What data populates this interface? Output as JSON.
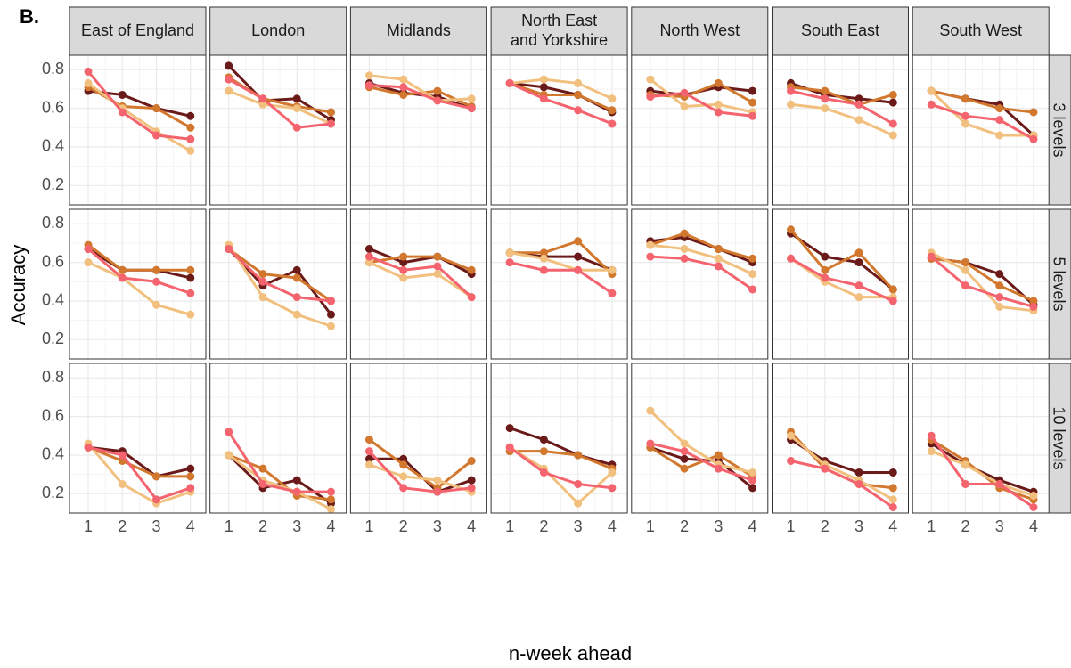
{
  "chart_data": {
    "type": "line",
    "tag": "B.",
    "xlabel": "n-week ahead",
    "ylabel": "Accuracy",
    "columns": [
      "East of England",
      "London",
      "Midlands",
      "North East and Yorkshire",
      "North West",
      "South East",
      "South West"
    ],
    "rows": [
      "3 levels",
      "5 levels",
      "10 levels"
    ],
    "x": [
      1,
      2,
      3,
      4
    ],
    "xlim": [
      0.45,
      4.45
    ],
    "ylim": [
      0.1,
      0.875
    ],
    "yticks": [
      0.2,
      0.4,
      0.6,
      0.8
    ],
    "grid": true,
    "colors": [
      "#6b1a1a",
      "#d2782e",
      "#f2c07e",
      "#f4646e"
    ],
    "panels": [
      [
        [
          [
            0.69,
            0.67,
            0.6,
            0.56
          ],
          [
            0.71,
            0.61,
            0.6,
            0.5
          ],
          [
            0.73,
            0.6,
            0.48,
            0.38
          ],
          [
            0.79,
            0.58,
            0.46,
            0.44
          ]
        ],
        [
          [
            0.82,
            0.64,
            0.65,
            0.54
          ],
          [
            0.76,
            0.65,
            0.61,
            0.58
          ],
          [
            0.69,
            0.62,
            0.6,
            0.52
          ],
          [
            0.75,
            0.65,
            0.5,
            0.52
          ]
        ],
        [
          [
            0.73,
            0.68,
            0.66,
            0.6
          ],
          [
            0.71,
            0.67,
            0.69,
            0.61
          ],
          [
            0.77,
            0.75,
            0.64,
            0.65
          ],
          [
            0.72,
            0.71,
            0.64,
            0.6
          ]
        ],
        [
          [
            0.73,
            0.71,
            0.67,
            0.58
          ],
          [
            0.73,
            0.67,
            0.67,
            0.59
          ],
          [
            0.73,
            0.75,
            0.73,
            0.65
          ],
          [
            0.73,
            0.65,
            0.59,
            0.52
          ]
        ],
        [
          [
            0.69,
            0.67,
            0.71,
            0.69
          ],
          [
            0.67,
            0.66,
            0.73,
            0.63
          ],
          [
            0.75,
            0.61,
            0.62,
            0.58
          ],
          [
            0.66,
            0.68,
            0.58,
            0.56
          ]
        ],
        [
          [
            0.73,
            0.67,
            0.65,
            0.63
          ],
          [
            0.71,
            0.69,
            0.62,
            0.67
          ],
          [
            0.62,
            0.6,
            0.54,
            0.46
          ],
          [
            0.69,
            0.65,
            0.62,
            0.52
          ]
        ],
        [
          [
            0.69,
            0.65,
            0.62,
            0.46
          ],
          [
            0.69,
            0.65,
            0.6,
            0.58
          ],
          [
            0.69,
            0.52,
            0.46,
            0.46
          ],
          [
            0.62,
            0.56,
            0.54,
            0.44
          ]
        ]
      ],
      [
        [
          [
            0.67,
            0.56,
            0.56,
            0.52
          ],
          [
            0.69,
            0.56,
            0.56,
            0.56
          ],
          [
            0.6,
            0.52,
            0.38,
            0.33
          ],
          [
            0.67,
            0.52,
            0.5,
            0.44
          ]
        ],
        [
          [
            0.67,
            0.48,
            0.56,
            0.33
          ],
          [
            0.67,
            0.54,
            0.52,
            0.4
          ],
          [
            0.69,
            0.42,
            0.33,
            0.27
          ],
          [
            0.67,
            0.5,
            0.42,
            0.4
          ]
        ],
        [
          [
            0.67,
            0.6,
            0.63,
            0.54
          ],
          [
            0.6,
            0.63,
            0.63,
            0.56
          ],
          [
            0.6,
            0.52,
            0.54,
            0.42
          ],
          [
            0.63,
            0.56,
            0.58,
            0.42
          ]
        ],
        [
          [
            0.65,
            0.63,
            0.63,
            0.56
          ],
          [
            0.65,
            0.65,
            0.71,
            0.54
          ],
          [
            0.65,
            0.62,
            0.56,
            0.56
          ],
          [
            0.6,
            0.56,
            0.56,
            0.44
          ]
        ],
        [
          [
            0.71,
            0.73,
            0.67,
            0.6
          ],
          [
            0.69,
            0.75,
            0.67,
            0.62
          ],
          [
            0.69,
            0.67,
            0.62,
            0.54
          ],
          [
            0.63,
            0.62,
            0.58,
            0.46
          ]
        ],
        [
          [
            0.75,
            0.63,
            0.6,
            0.46
          ],
          [
            0.77,
            0.56,
            0.65,
            0.46
          ],
          [
            0.62,
            0.5,
            0.42,
            0.42
          ],
          [
            0.62,
            0.52,
            0.48,
            0.4
          ]
        ],
        [
          [
            0.62,
            0.6,
            0.54,
            0.38
          ],
          [
            0.62,
            0.6,
            0.48,
            0.4
          ],
          [
            0.65,
            0.56,
            0.37,
            0.35
          ],
          [
            0.63,
            0.48,
            0.42,
            0.37
          ]
        ]
      ],
      [
        [
          [
            0.44,
            0.42,
            0.29,
            0.33
          ],
          [
            0.44,
            0.37,
            0.29,
            0.29
          ],
          [
            0.46,
            0.25,
            0.15,
            0.21
          ],
          [
            0.44,
            0.4,
            0.17,
            0.23
          ]
        ],
        [
          [
            0.4,
            0.23,
            0.27,
            0.15
          ],
          [
            0.4,
            0.33,
            0.19,
            0.17
          ],
          [
            0.4,
            0.27,
            0.21,
            0.12
          ],
          [
            0.52,
            0.25,
            0.21,
            0.21
          ]
        ],
        [
          [
            0.38,
            0.38,
            0.21,
            0.27
          ],
          [
            0.48,
            0.35,
            0.23,
            0.37
          ],
          [
            0.35,
            0.29,
            0.27,
            0.21
          ],
          [
            0.42,
            0.23,
            0.21,
            0.23
          ]
        ],
        [
          [
            0.54,
            0.48,
            0.4,
            0.35
          ],
          [
            0.42,
            0.42,
            0.4,
            0.33
          ],
          [
            0.44,
            0.33,
            0.15,
            0.31
          ],
          [
            0.44,
            0.31,
            0.25,
            0.23
          ]
        ],
        [
          [
            0.44,
            0.38,
            0.37,
            0.23
          ],
          [
            0.44,
            0.33,
            0.4,
            0.29
          ],
          [
            0.63,
            0.46,
            0.35,
            0.31
          ],
          [
            0.46,
            0.42,
            0.33,
            0.27
          ]
        ],
        [
          [
            0.48,
            0.37,
            0.31,
            0.31
          ],
          [
            0.52,
            0.33,
            0.25,
            0.23
          ],
          [
            0.5,
            0.35,
            0.27,
            0.17
          ],
          [
            0.37,
            0.33,
            0.25,
            0.13
          ]
        ],
        [
          [
            0.46,
            0.35,
            0.27,
            0.21
          ],
          [
            0.48,
            0.37,
            0.23,
            0.17
          ],
          [
            0.42,
            0.35,
            0.25,
            0.19
          ],
          [
            0.5,
            0.25,
            0.25,
            0.13
          ]
        ]
      ]
    ]
  }
}
